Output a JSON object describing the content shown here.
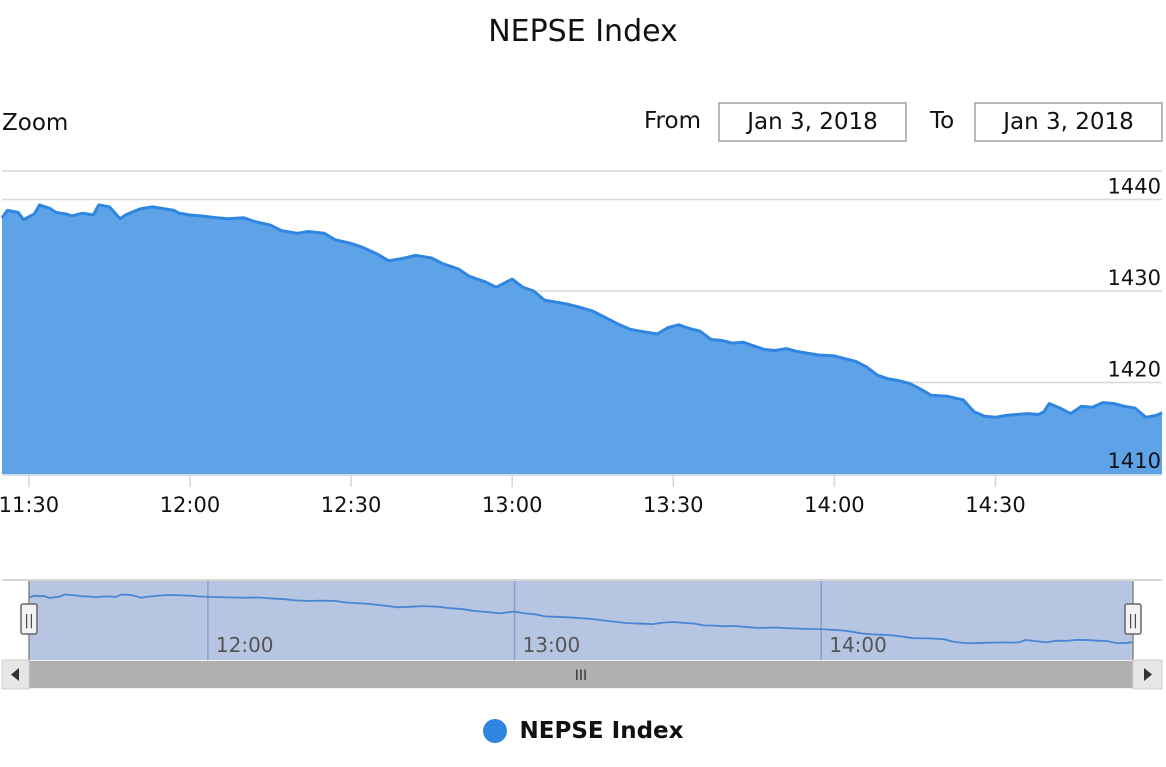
{
  "title": "NEPSE Index",
  "range_selector": {
    "zoom_label": "Zoom",
    "from_label": "From",
    "from_value": "Jan 3, 2018",
    "to_label": "To",
    "to_value": "Jan 3, 2018"
  },
  "navigator": {
    "scroll_grip": "III",
    "left_handle_grip": "||",
    "right_handle_grip": "||",
    "x_ticks": [
      "12:00",
      "13:00",
      "14:00"
    ]
  },
  "colors": {
    "series_line": "#2f86e0",
    "series_fill": "#5ea3e8",
    "navigator_mask": "rgba(102,133,194,0.48)",
    "scrollbar_track": "#b0b0b0"
  },
  "chart_data": {
    "type": "area",
    "title": "NEPSE Index",
    "x_unit": "time of day",
    "x_ticks": [
      "11:30",
      "12:00",
      "12:30",
      "13:00",
      "13:30",
      "14:00",
      "14:30"
    ],
    "y_ticks": [
      1410,
      1420,
      1430,
      1440
    ],
    "ylim": [
      1410,
      1443
    ],
    "legend_position": "bottom-center",
    "series": [
      {
        "name": "NEPSE Index",
        "points": [
          [
            "11:25",
            1438.0
          ],
          [
            "11:26",
            1438.8
          ],
          [
            "11:28",
            1438.6
          ],
          [
            "11:29",
            1437.8
          ],
          [
            "11:31",
            1438.4
          ],
          [
            "11:32",
            1439.4
          ],
          [
            "11:34",
            1439.0
          ],
          [
            "11:35",
            1438.6
          ],
          [
            "11:37",
            1438.4
          ],
          [
            "11:38",
            1438.2
          ],
          [
            "11:40",
            1438.5
          ],
          [
            "11:42",
            1438.3
          ],
          [
            "11:43",
            1439.4
          ],
          [
            "11:45",
            1439.2
          ],
          [
            "11:47",
            1437.9
          ],
          [
            "11:48",
            1438.3
          ],
          [
            "11:50",
            1438.8
          ],
          [
            "11:51",
            1439.0
          ],
          [
            "11:53",
            1439.2
          ],
          [
            "11:55",
            1439.0
          ],
          [
            "11:57",
            1438.8
          ],
          [
            "11:58",
            1438.5
          ],
          [
            "12:00",
            1438.3
          ],
          [
            "12:02",
            1438.2
          ],
          [
            "12:05",
            1438.0
          ],
          [
            "12:07",
            1437.9
          ],
          [
            "12:10",
            1438.0
          ],
          [
            "12:12",
            1437.6
          ],
          [
            "12:15",
            1437.2
          ],
          [
            "12:17",
            1436.6
          ],
          [
            "12:20",
            1436.3
          ],
          [
            "12:22",
            1436.5
          ],
          [
            "12:25",
            1436.3
          ],
          [
            "12:27",
            1435.6
          ],
          [
            "12:30",
            1435.2
          ],
          [
            "12:32",
            1434.8
          ],
          [
            "12:35",
            1434.0
          ],
          [
            "12:37",
            1433.3
          ],
          [
            "12:40",
            1433.6
          ],
          [
            "12:42",
            1433.9
          ],
          [
            "12:45",
            1433.6
          ],
          [
            "12:47",
            1433.0
          ],
          [
            "12:50",
            1432.4
          ],
          [
            "12:52",
            1431.6
          ],
          [
            "12:55",
            1431.0
          ],
          [
            "12:57",
            1430.4
          ],
          [
            "13:00",
            1431.3
          ],
          [
            "13:02",
            1430.4
          ],
          [
            "13:04",
            1430.0
          ],
          [
            "13:06",
            1429.0
          ],
          [
            "13:08",
            1428.8
          ],
          [
            "13:10",
            1428.6
          ],
          [
            "13:12",
            1428.3
          ],
          [
            "13:15",
            1427.8
          ],
          [
            "13:17",
            1427.2
          ],
          [
            "13:20",
            1426.3
          ],
          [
            "13:22",
            1425.8
          ],
          [
            "13:25",
            1425.5
          ],
          [
            "13:27",
            1425.3
          ],
          [
            "13:29",
            1426.0
          ],
          [
            "13:31",
            1426.3
          ],
          [
            "13:33",
            1425.9
          ],
          [
            "13:35",
            1425.6
          ],
          [
            "13:37",
            1424.7
          ],
          [
            "13:39",
            1424.6
          ],
          [
            "13:41",
            1424.3
          ],
          [
            "13:43",
            1424.4
          ],
          [
            "13:45",
            1424.0
          ],
          [
            "13:47",
            1423.6
          ],
          [
            "13:49",
            1423.5
          ],
          [
            "13:51",
            1423.7
          ],
          [
            "13:53",
            1423.4
          ],
          [
            "13:55",
            1423.2
          ],
          [
            "13:57",
            1423.0
          ],
          [
            "14:00",
            1422.9
          ],
          [
            "14:02",
            1422.6
          ],
          [
            "14:04",
            1422.3
          ],
          [
            "14:06",
            1421.7
          ],
          [
            "14:08",
            1420.8
          ],
          [
            "14:10",
            1420.4
          ],
          [
            "14:12",
            1420.2
          ],
          [
            "14:14",
            1419.9
          ],
          [
            "14:16",
            1419.3
          ],
          [
            "14:18",
            1418.6
          ],
          [
            "14:21",
            1418.5
          ],
          [
            "14:24",
            1418.1
          ],
          [
            "14:26",
            1416.8
          ],
          [
            "14:28",
            1416.3
          ],
          [
            "14:30",
            1416.2
          ],
          [
            "14:32",
            1416.4
          ],
          [
            "14:34",
            1416.5
          ],
          [
            "14:36",
            1416.6
          ],
          [
            "14:38",
            1416.5
          ],
          [
            "14:39",
            1416.8
          ],
          [
            "14:40",
            1417.7
          ],
          [
            "14:42",
            1417.2
          ],
          [
            "14:44",
            1416.6
          ],
          [
            "14:46",
            1417.4
          ],
          [
            "14:48",
            1417.3
          ],
          [
            "14:50",
            1417.8
          ],
          [
            "14:52",
            1417.7
          ],
          [
            "14:54",
            1417.4
          ],
          [
            "14:56",
            1417.2
          ],
          [
            "14:58",
            1416.2
          ],
          [
            "15:00",
            1416.4
          ],
          [
            "15:01",
            1416.7
          ]
        ]
      }
    ]
  }
}
